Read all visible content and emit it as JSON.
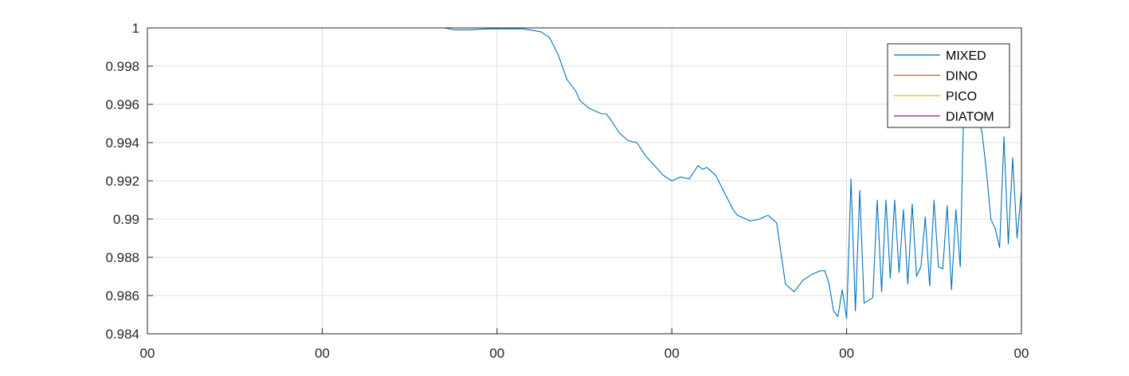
{
  "chart_data": {
    "type": "line",
    "title": "",
    "xlabel": "",
    "ylabel": "",
    "grid": true,
    "legend_position": "top-right",
    "xlim": [
      0,
      1
    ],
    "ylim": [
      0.984,
      1
    ],
    "x_ticks": [
      0,
      0.2,
      0.4,
      0.6,
      0.8,
      1.0
    ],
    "x_tick_labels": [
      "00",
      "00",
      "00",
      "00",
      "00",
      "00"
    ],
    "y_ticks": [
      0.984,
      0.986,
      0.988,
      0.99,
      0.992,
      0.994,
      0.996,
      0.998,
      1
    ],
    "y_tick_labels": [
      "0.984",
      "0.986",
      "0.988",
      "0.99",
      "0.992",
      "0.994",
      "0.996",
      "0.998",
      "1"
    ],
    "series": [
      {
        "name": "MIXED",
        "color": "#0072BD",
        "x": [
          0,
          0.34,
          0.35,
          0.37,
          0.39,
          0.41,
          0.43,
          0.45,
          0.46,
          0.47,
          0.48,
          0.49,
          0.495,
          0.5,
          0.505,
          0.51,
          0.52,
          0.525,
          0.53,
          0.54,
          0.55,
          0.56,
          0.57,
          0.58,
          0.59,
          0.6,
          0.61,
          0.62,
          0.63,
          0.635,
          0.64,
          0.65,
          0.66,
          0.67,
          0.675,
          0.68,
          0.69,
          0.7,
          0.71,
          0.72,
          0.73,
          0.74,
          0.75,
          0.76,
          0.77,
          0.775,
          0.78,
          0.785,
          0.79,
          0.795,
          0.8,
          0.805,
          0.81,
          0.815,
          0.82,
          0.83,
          0.835,
          0.84,
          0.845,
          0.85,
          0.855,
          0.86,
          0.865,
          0.87,
          0.875,
          0.88,
          0.885,
          0.89,
          0.895,
          0.9,
          0.905,
          0.91,
          0.915,
          0.92,
          0.925,
          0.93,
          0.935,
          0.94,
          0.945,
          0.95,
          0.955,
          0.96,
          0.965,
          0.97,
          0.975,
          0.98,
          0.985,
          0.99,
          0.995,
          1.0
        ],
        "values": [
          1,
          1,
          0.9999,
          0.9999,
          0.99995,
          0.99995,
          0.99995,
          0.9998,
          0.9995,
          0.9986,
          0.9973,
          0.9967,
          0.9962,
          0.996,
          0.9958,
          0.9957,
          0.9955,
          0.9955,
          0.9952,
          0.9945,
          0.9941,
          0.994,
          0.9933,
          0.9928,
          0.9923,
          0.992,
          0.9922,
          0.9921,
          0.9928,
          0.9926,
          0.9927,
          0.9923,
          0.9914,
          0.9905,
          0.9902,
          0.9901,
          0.9899,
          0.99,
          0.9902,
          0.9898,
          0.9866,
          0.9862,
          0.9868,
          0.9871,
          0.9873,
          0.9873,
          0.9866,
          0.9852,
          0.9849,
          0.9863,
          0.9848,
          0.9921,
          0.9852,
          0.9915,
          0.9856,
          0.9859,
          0.991,
          0.9862,
          0.991,
          0.9869,
          0.991,
          0.9872,
          0.9905,
          0.9866,
          0.9908,
          0.987,
          0.9875,
          0.9901,
          0.9865,
          0.991,
          0.9875,
          0.9874,
          0.9907,
          0.9863,
          0.9905,
          0.9875,
          0.998,
          0.995,
          0.9962,
          0.9955,
          0.9945,
          0.9925,
          0.99,
          0.9895,
          0.9885,
          0.9943,
          0.9887,
          0.9932,
          0.989,
          0.9915
        ]
      },
      {
        "name": "DINO",
        "color": "#D95319",
        "x": [
          0,
          1
        ],
        "values": [
          1,
          1
        ]
      },
      {
        "name": "PICO",
        "color": "#EDB120",
        "x": [
          0,
          1
        ],
        "values": [
          1,
          1
        ]
      },
      {
        "name": "DIATOM",
        "color": "#7E2F8E",
        "x": [
          0,
          1
        ],
        "values": [
          1,
          1
        ]
      }
    ]
  }
}
